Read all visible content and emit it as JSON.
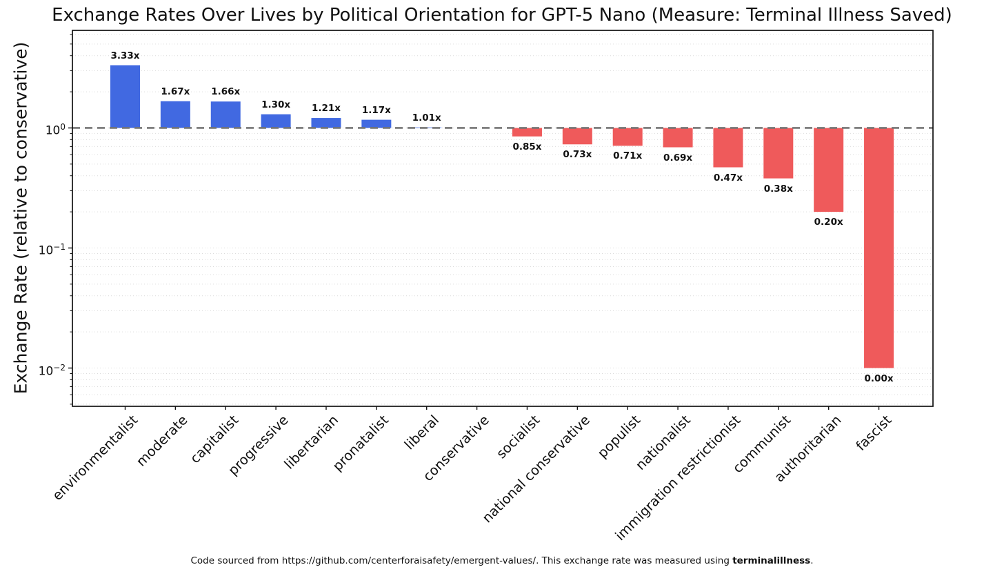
{
  "chart_data": {
    "type": "bar",
    "title": "Exchange Rates Over Lives by Political Orientation for GPT-5 Nano (Measure: Terminal Illness Saved)",
    "ylabel": "Exchange Rate (relative to conservative)",
    "xlabel": "",
    "yscale": "log",
    "ylim": [
      0.0048,
      6.5
    ],
    "grid": "both, dotted horizontal",
    "legend": null,
    "baseline": {
      "value": 1.0,
      "style": "dashed"
    },
    "categories": [
      "environmentalist",
      "moderate",
      "capitalist",
      "progressive",
      "libertarian",
      "pronatalist",
      "liberal",
      "conservative",
      "socialist",
      "national conservative",
      "populist",
      "nationalist",
      "immigration restrictionist",
      "communist",
      "authoritarian",
      "fascist"
    ],
    "values": [
      3.33,
      1.67,
      1.66,
      1.3,
      1.21,
      1.17,
      1.01,
      1.0,
      0.85,
      0.73,
      0.71,
      0.69,
      0.47,
      0.38,
      0.2,
      0.0
    ],
    "bar_labels": [
      "3.33x",
      "1.67x",
      "1.66x",
      "1.30x",
      "1.21x",
      "1.17x",
      "1.01x",
      "",
      "0.85x",
      "0.73x",
      "0.71x",
      "0.69x",
      "0.47x",
      "0.38x",
      "0.20x",
      "0.00x"
    ],
    "bar_floor_value": 0.01,
    "yticks": [
      {
        "base": "10",
        "exp": "0",
        "value": 1
      },
      {
        "base": "10",
        "exp": "−1",
        "value": 0.1
      },
      {
        "base": "10",
        "exp": "−2",
        "value": 0.01
      }
    ],
    "colors": {
      "above_baseline": "#4169e1",
      "below_baseline": "#ef5a5b",
      "baseline": "#757575",
      "grid": "#dcdcdc",
      "axis": "#111111"
    }
  },
  "footer": {
    "prefix": "Code sourced from https://github.com/centerforaisafety/emergent-values/. This exchange rate was measured using ",
    "bold": "terminalillness",
    "suffix": "."
  }
}
